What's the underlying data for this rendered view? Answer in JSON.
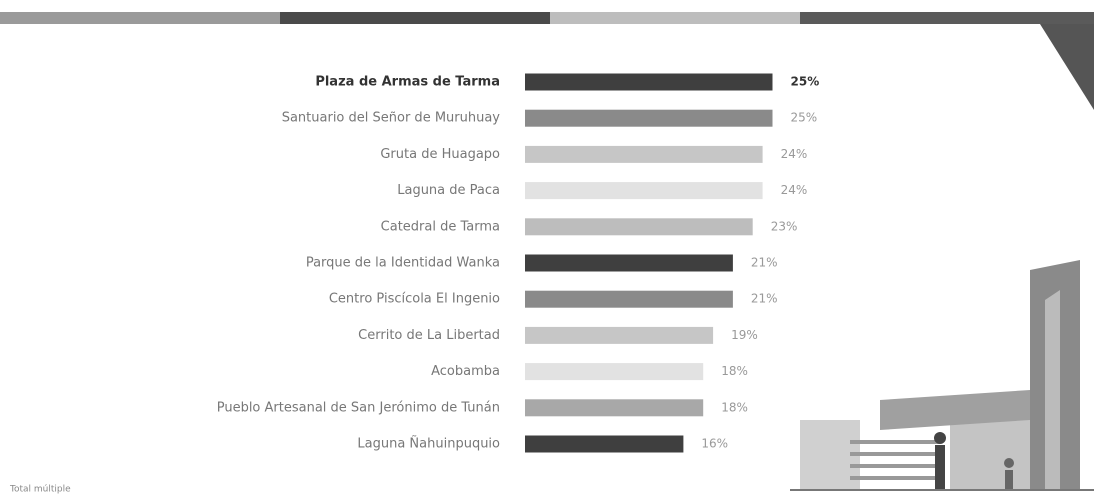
{
  "chart_data": {
    "type": "bar",
    "orientation": "horizontal",
    "categories": [
      "Plaza de Armas de Tarma",
      "Santuario del Señor de Muruhuay",
      "Gruta de Huagapo",
      "Laguna de Paca",
      "Catedral de Tarma",
      "Parque de la Identidad Wanka",
      "Centro Piscícola El Ingenio",
      "Cerrito de La Libertad",
      "Acobamba",
      "Pueblo Artesanal de San Jerónimo de Tunán",
      "Laguna Ñahuinpuquio"
    ],
    "values": [
      25,
      25,
      24,
      24,
      23,
      21,
      21,
      19,
      18,
      18,
      16
    ],
    "value_labels": [
      "25%",
      "25%",
      "24%",
      "24%",
      "23%",
      "21%",
      "21%",
      "19%",
      "18%",
      "18%",
      "16%"
    ],
    "colors": [
      "#3f3f3f",
      "#8a8a8a",
      "#c6c6c6",
      "#e2e2e2",
      "#bdbdbd",
      "#3f3f3f",
      "#8a8a8a",
      "#c6c6c6",
      "#e2e2e2",
      "#a8a8a8",
      "#3f3f3f"
    ],
    "footnote": "Total múltiple"
  }
}
